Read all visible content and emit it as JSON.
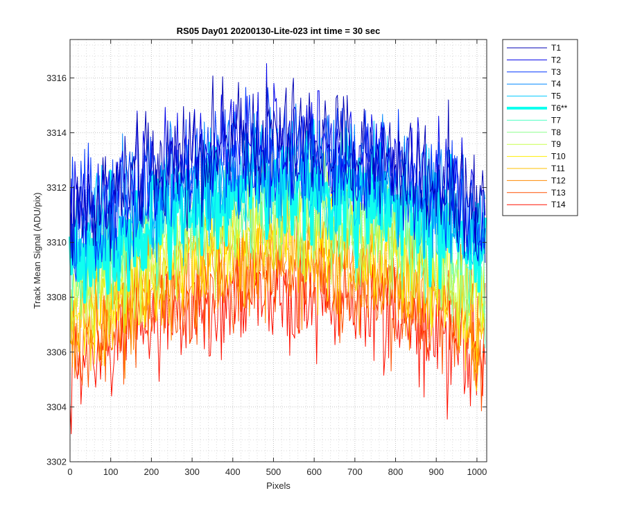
{
  "chart_data": {
    "type": "line",
    "title": "RS05 Day01 20200130-Lite-023 int time = 30 sec",
    "xlabel": "Pixels",
    "ylabel": "Track Mean Signal (ADU/pix)",
    "xlim": [
      0,
      1024
    ],
    "ylim": [
      3302,
      3317.4
    ],
    "xticks": [
      0,
      100,
      200,
      300,
      400,
      500,
      600,
      700,
      800,
      900,
      1000
    ],
    "yticks": [
      3302,
      3304,
      3306,
      3308,
      3310,
      3312,
      3314,
      3316
    ],
    "grid": "major-and-minor-dotted",
    "legend_position": "outside-top-right",
    "x_sampled": [
      0,
      64,
      128,
      192,
      256,
      320,
      384,
      448,
      512,
      576,
      640,
      704,
      768,
      832,
      896,
      960,
      1023
    ],
    "series": [
      {
        "name": "T1",
        "color": "#0000b4",
        "width": 1,
        "values": [
          3311.0,
          3311.5,
          3312.0,
          3312.6,
          3313.0,
          3313.4,
          3313.6,
          3313.8,
          3313.9,
          3313.8,
          3313.6,
          3313.4,
          3313.1,
          3312.8,
          3312.4,
          3311.9,
          3311.0
        ]
      },
      {
        "name": "T2",
        "color": "#0000ea",
        "width": 1,
        "values": [
          3310.8,
          3311.3,
          3311.8,
          3312.4,
          3312.8,
          3313.2,
          3313.4,
          3313.6,
          3313.7,
          3313.6,
          3313.4,
          3313.2,
          3312.9,
          3312.6,
          3312.2,
          3311.7,
          3310.8
        ]
      },
      {
        "name": "T3",
        "color": "#0036ff",
        "width": 1,
        "values": [
          3310.5,
          3311.0,
          3311.5,
          3312.1,
          3312.5,
          3312.9,
          3313.1,
          3313.3,
          3313.4,
          3313.3,
          3313.1,
          3312.9,
          3312.6,
          3312.3,
          3311.9,
          3311.4,
          3310.5
        ]
      },
      {
        "name": "T4",
        "color": "#0088ff",
        "width": 1,
        "values": [
          3310.1,
          3310.6,
          3311.1,
          3311.7,
          3312.1,
          3312.5,
          3312.7,
          3312.9,
          3313.0,
          3312.9,
          3312.7,
          3312.5,
          3312.2,
          3311.9,
          3311.5,
          3311.0,
          3310.1
        ]
      },
      {
        "name": "T5",
        "color": "#00caff",
        "width": 1,
        "values": [
          3309.8,
          3310.3,
          3310.8,
          3311.4,
          3311.8,
          3312.2,
          3312.4,
          3312.6,
          3312.7,
          3312.6,
          3312.4,
          3312.2,
          3311.9,
          3311.6,
          3311.2,
          3310.7,
          3309.8
        ]
      },
      {
        "name": "T6**",
        "color": "#10ffef",
        "width": 4,
        "values": [
          3309.3,
          3309.8,
          3310.3,
          3310.9,
          3311.3,
          3311.7,
          3311.9,
          3312.1,
          3312.2,
          3312.1,
          3311.9,
          3311.7,
          3311.4,
          3311.1,
          3310.7,
          3310.2,
          3309.3
        ]
      },
      {
        "name": "T7",
        "color": "#4dffc2",
        "width": 1,
        "values": [
          3308.9,
          3309.4,
          3309.9,
          3310.5,
          3310.9,
          3311.3,
          3311.5,
          3311.7,
          3311.8,
          3311.7,
          3311.5,
          3311.3,
          3311.0,
          3310.7,
          3310.3,
          3309.8,
          3308.9
        ]
      },
      {
        "name": "T8",
        "color": "#8cff8c",
        "width": 1,
        "values": [
          3308.5,
          3309.0,
          3309.5,
          3310.1,
          3310.5,
          3310.9,
          3311.1,
          3311.3,
          3311.4,
          3311.3,
          3311.1,
          3310.9,
          3310.6,
          3310.3,
          3309.9,
          3309.4,
          3308.5
        ]
      },
      {
        "name": "T9",
        "color": "#c8ff4d",
        "width": 1,
        "values": [
          3308.1,
          3308.6,
          3309.1,
          3309.7,
          3310.1,
          3310.5,
          3310.7,
          3310.9,
          3311.0,
          3310.9,
          3310.7,
          3310.5,
          3310.2,
          3309.9,
          3309.5,
          3309.0,
          3308.1
        ]
      },
      {
        "name": "T10",
        "color": "#ffee00",
        "width": 1,
        "values": [
          3307.6,
          3308.1,
          3308.6,
          3309.2,
          3309.6,
          3310.0,
          3310.2,
          3310.4,
          3310.5,
          3310.4,
          3310.2,
          3310.0,
          3309.7,
          3309.4,
          3309.0,
          3308.5,
          3307.6
        ]
      },
      {
        "name": "T11",
        "color": "#ffc200",
        "width": 1,
        "values": [
          3307.1,
          3307.6,
          3308.1,
          3308.7,
          3309.1,
          3309.5,
          3309.7,
          3309.9,
          3310.0,
          3309.9,
          3309.7,
          3309.5,
          3309.2,
          3308.9,
          3308.5,
          3308.0,
          3307.1
        ]
      },
      {
        "name": "T12",
        "color": "#ff8800",
        "width": 1,
        "values": [
          3306.6,
          3307.1,
          3307.6,
          3308.2,
          3308.6,
          3309.0,
          3309.2,
          3309.4,
          3309.5,
          3309.4,
          3309.2,
          3309.0,
          3308.7,
          3308.4,
          3308.0,
          3307.5,
          3306.6
        ]
      },
      {
        "name": "T13",
        "color": "#ff5000",
        "width": 1,
        "values": [
          3306.0,
          3306.5,
          3307.0,
          3307.6,
          3308.0,
          3308.4,
          3308.6,
          3308.8,
          3308.9,
          3308.8,
          3308.6,
          3308.4,
          3308.1,
          3307.8,
          3307.4,
          3306.9,
          3306.0
        ]
      },
      {
        "name": "T14",
        "color": "#ff1000",
        "width": 1,
        "values": [
          3305.3,
          3305.8,
          3306.3,
          3306.9,
          3307.3,
          3307.7,
          3307.9,
          3308.1,
          3308.2,
          3308.1,
          3307.9,
          3307.7,
          3307.4,
          3307.1,
          3306.7,
          3306.2,
          3305.3
        ]
      }
    ]
  }
}
